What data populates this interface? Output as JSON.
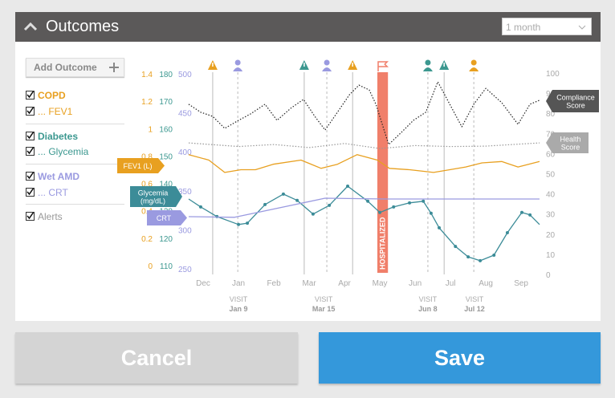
{
  "header": {
    "title": "Outcomes",
    "period": "1 month"
  },
  "sidebar": {
    "add_button": "Add Outcome",
    "items": [
      "COPD",
      "... FEV1",
      "Diabetes",
      "... Glycemia",
      "Wet AMD",
      "... CRT",
      "Alerts"
    ]
  },
  "chart_data": {
    "type": "line",
    "xlim": [
      -0.41,
      9.52
    ],
    "xticks": [
      {
        "value": 0,
        "label": "Dec"
      },
      {
        "value": 1,
        "label": "Jan"
      },
      {
        "value": 2,
        "label": "Feb"
      },
      {
        "value": 3,
        "label": "Mar"
      },
      {
        "value": 4,
        "label": "Apr"
      },
      {
        "value": 5,
        "label": "May"
      },
      {
        "value": 6,
        "label": "Jun"
      },
      {
        "value": 7,
        "label": "Jul"
      },
      {
        "value": 8,
        "label": "Aug"
      },
      {
        "value": 9,
        "label": "Sep"
      }
    ],
    "axes": {
      "fev1": {
        "ylim": [
          0,
          1.4
        ],
        "yticks": [
          0,
          0.2,
          0.4,
          0.6,
          0.8,
          1,
          1.2,
          1.4
        ],
        "color": "#e8a020"
      },
      "glycemia": {
        "ylim": [
          110,
          180
        ],
        "yticks": [
          110,
          120,
          130,
          140,
          150,
          160,
          170,
          180
        ],
        "color": "#3c9890"
      },
      "crt": {
        "ylim": [
          250,
          500
        ],
        "yticks": [
          250,
          300,
          350,
          400,
          450,
          500
        ],
        "color": "#9a9ae0"
      },
      "score": {
        "ylim": [
          0,
          100
        ],
        "yticks": [
          0,
          10,
          20,
          30,
          40,
          50,
          60,
          70,
          80,
          90,
          100
        ],
        "color": "#aaaaaa"
      }
    },
    "series": [
      {
        "label": [
          "Compliance",
          "Score"
        ],
        "axis": "score",
        "color": "#222222",
        "dash": true,
        "x": [
          -0.41,
          -0.07,
          0.27,
          0.61,
          1.0,
          1.34,
          1.75,
          2.09,
          2.48,
          2.84,
          3.16,
          3.45,
          3.8,
          4.14,
          4.41,
          4.7,
          4.89,
          5.25,
          5.61,
          5.95,
          6.3,
          6.64,
          6.98,
          7.32,
          7.66,
          8.0,
          8.45,
          8.91,
          9.25,
          9.52
        ],
        "values": [
          84.5,
          80.5,
          78.5,
          72.5,
          76.5,
          79.7,
          84.5,
          76.5,
          82.5,
          86.9,
          78.5,
          71.7,
          80.5,
          89.2,
          94.0,
          91.6,
          84.5,
          64.5,
          70.5,
          76.5,
          80.5,
          95.6,
          84.5,
          73.3,
          84.5,
          92.4,
          85.3,
          74.5,
          84.5,
          86.5
        ]
      },
      {
        "label": [
          "Health",
          "Score"
        ],
        "axis": "score",
        "color": "#999999",
        "dash": true,
        "x": [
          -0.41,
          1,
          2,
          3,
          4,
          5,
          6,
          7,
          8,
          9.52
        ],
        "values": [
          65.3,
          63.5,
          64.5,
          63.0,
          65.0,
          62.5,
          64.0,
          63.5,
          63.7,
          65.3
        ]
      },
      {
        "label": [
          "FEV1 (L)"
        ],
        "axis": "fev1",
        "color": "#e8a020",
        "dash": false,
        "x": [
          -0.41,
          0.16,
          0.61,
          1.07,
          1.48,
          1.98,
          2.77,
          3.34,
          3.8,
          4.36,
          4.93,
          5.27,
          5.84,
          6.52,
          6.98,
          7.43,
          7.89,
          8.45,
          8.91,
          9.52
        ],
        "values": [
          0.81,
          0.77,
          0.68,
          0.7,
          0.7,
          0.74,
          0.77,
          0.71,
          0.74,
          0.81,
          0.77,
          0.71,
          0.7,
          0.68,
          0.7,
          0.72,
          0.75,
          0.76,
          0.72,
          0.76
        ]
      },
      {
        "label": [
          "Glycemia",
          "(mg/dL)"
        ],
        "axis": "glycemia",
        "color": "#3c8c98",
        "dash": false,
        "x": [
          -0.41,
          -0.07,
          0.39,
          1.0,
          1.25,
          1.75,
          2.27,
          2.66,
          3.11,
          3.57,
          4.09,
          4.66,
          5.0,
          5.39,
          5.84,
          6.23,
          6.45,
          6.68,
          7.14,
          7.5,
          7.84,
          8.23,
          8.61,
          9.02,
          9.25,
          9.52
        ],
        "values": [
          134.3,
          131.4,
          127.9,
          125.0,
          125.5,
          132.3,
          136.1,
          133.8,
          128.8,
          132.0,
          139.0,
          133.5,
          129.4,
          131.4,
          132.9,
          133.5,
          129.1,
          123.8,
          117.0,
          113.2,
          111.8,
          113.8,
          122.0,
          129.4,
          128.5,
          125.0
        ]
      },
      {
        "label": [
          "CRT"
        ],
        "axis": "crt",
        "color": "#9a9ae0",
        "dash": false,
        "x": [
          -0.41,
          0.89,
          3.45,
          5.16,
          9.52
        ],
        "values": [
          316.9,
          316.0,
          340.5,
          339.5,
          339.5
        ]
      }
    ],
    "events": [
      {
        "x": 0.27,
        "icon": "warning",
        "color": "#e8a020"
      },
      {
        "x": 0.98,
        "icon": "person",
        "color": "#9a9ae0"
      },
      {
        "x": 2.86,
        "icon": "warning",
        "color": "#3c9890"
      },
      {
        "x": 3.5,
        "icon": "person",
        "color": "#9a9ae0"
      },
      {
        "x": 4.23,
        "icon": "warning",
        "color": "#e8a020"
      },
      {
        "x": 6.36,
        "icon": "person",
        "color": "#3c9890"
      },
      {
        "x": 6.82,
        "icon": "warning",
        "color": "#3c9890"
      },
      {
        "x": 7.66,
        "icon": "person",
        "color": "#e8a020"
      }
    ],
    "hospitalization": {
      "label": "HOSPITALIZED",
      "x": [
        4.93,
        5.23
      ],
      "color": "#f07f6a"
    },
    "visits": [
      {
        "label": "VISIT",
        "date": "Jan 9",
        "x": 1.0
      },
      {
        "label": "VISIT",
        "date": "Mar 15",
        "x": 3.41
      },
      {
        "label": "VISIT",
        "date": "Jun 8",
        "x": 6.36
      },
      {
        "label": "VISIT",
        "date": "Jul 12",
        "x": 7.68
      }
    ]
  },
  "buttons": {
    "cancel": "Cancel",
    "save": "Save"
  }
}
